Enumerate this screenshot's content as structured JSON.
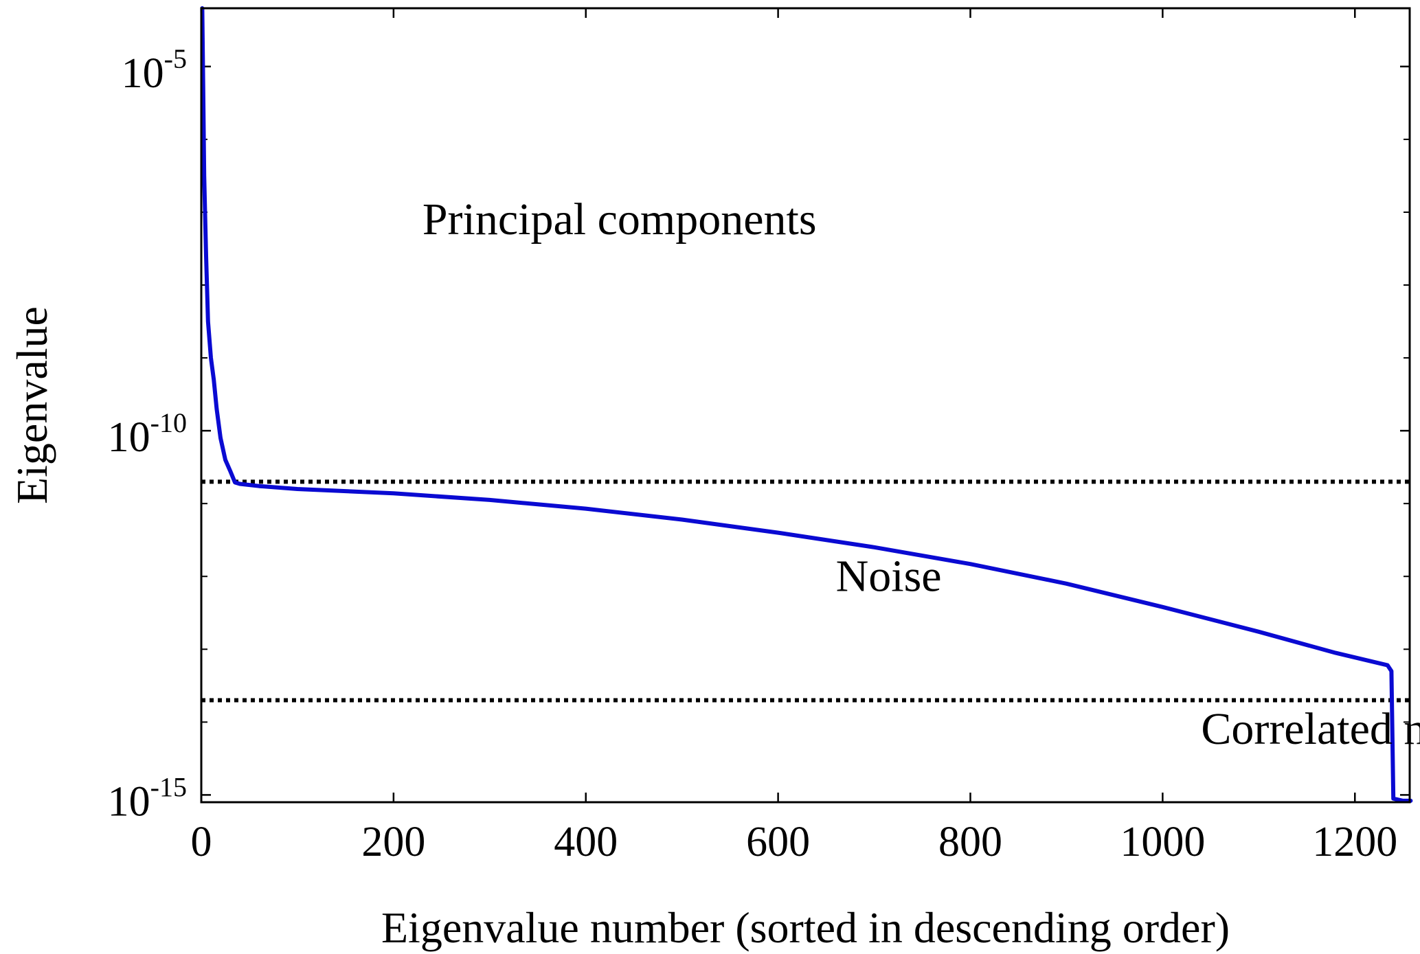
{
  "chart_data": {
    "type": "line",
    "xlabel": "Eigenvalue number (sorted in descending order)",
    "ylabel": "Eigenvalue",
    "y_scale": "log",
    "xlim": [
      0,
      1257
    ],
    "ylim_exponent": [
      -15.1,
      -4.2
    ],
    "x_ticks": [
      {
        "value": 0,
        "label": "0"
      },
      {
        "value": 200,
        "label": "200"
      },
      {
        "value": 400,
        "label": "400"
      },
      {
        "value": 600,
        "label": "600"
      },
      {
        "value": 800,
        "label": "800"
      },
      {
        "value": 1000,
        "label": "1000"
      },
      {
        "value": 1200,
        "label": "1200"
      }
    ],
    "y_ticks": [
      {
        "exponent": -5,
        "base": "10",
        "sup": "-5"
      },
      {
        "exponent": -10,
        "base": "10",
        "sup": "-10"
      },
      {
        "exponent": -15,
        "base": "10",
        "sup": "-15"
      }
    ],
    "y_minor_exponents": [
      -6,
      -7,
      -8,
      -9,
      -11,
      -12,
      -13,
      -14
    ],
    "line_color": "#0a0ad2",
    "threshold_color": "#000000",
    "series": [
      {
        "name": "",
        "x": [
          1,
          2,
          3,
          5,
          7,
          10,
          13,
          16,
          20,
          25,
          30,
          35,
          40,
          60,
          100,
          200,
          300,
          400,
          500,
          600,
          700,
          800,
          900,
          1000,
          1100,
          1180,
          1234,
          1238,
          1240,
          1250,
          1258
        ],
        "y_exponent": [
          -4.2,
          -5.3,
          -6.5,
          -7.6,
          -8.5,
          -9.0,
          -9.3,
          -9.7,
          -10.1,
          -10.4,
          -10.55,
          -10.71,
          -10.73,
          -10.76,
          -10.8,
          -10.86,
          -10.95,
          -11.07,
          -11.22,
          -11.4,
          -11.6,
          -11.83,
          -12.1,
          -12.42,
          -12.76,
          -13.05,
          -13.22,
          -13.3,
          -15.05,
          -15.08,
          -15.08
        ]
      }
    ],
    "thresholds": [
      {
        "y_exponent": -10.7
      },
      {
        "y_exponent": -13.7
      }
    ],
    "annotations": [
      {
        "text": "Principal components",
        "x": 230,
        "y_exponent": -7.3
      },
      {
        "text": "Noise",
        "x": 660,
        "y_exponent": -12.2
      },
      {
        "text": "Correlated noise",
        "x": 1040,
        "y_exponent": -14.3
      }
    ]
  }
}
